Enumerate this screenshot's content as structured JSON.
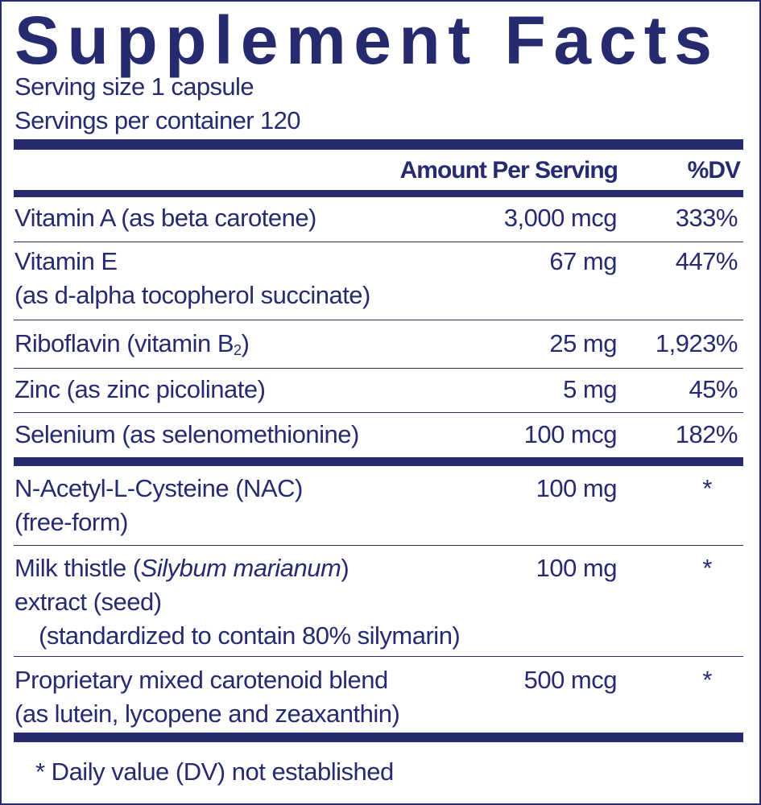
{
  "title": "Supplement Facts",
  "serving_size": "Serving size  1 capsule",
  "servings_per_container": "Servings per container  120",
  "header": {
    "amount": "Amount Per Serving",
    "dv": "%DV"
  },
  "rows": [
    {
      "name": "Vitamin A (as beta carotene)",
      "amount": "3,000 mcg",
      "dv": "333%"
    },
    {
      "name": "Vitamin E",
      "name_line2": "(as d-alpha tocopherol succinate)",
      "amount": "67 mg",
      "dv": "447%"
    },
    {
      "name": "Riboflavin (vitamin B",
      "name_sub": "2",
      "name_end": ")",
      "amount": "25 mg",
      "dv": "1,923%"
    },
    {
      "name": "Zinc (as zinc picolinate)",
      "amount": "5 mg",
      "dv": "45%"
    },
    {
      "name": "Selenium (as selenomethionine)",
      "amount": "100 mcg",
      "dv": "182%"
    },
    {
      "name": "N-Acetyl-L-Cysteine (NAC)",
      "name_line2": "(free-form)",
      "amount": "100 mg",
      "dv": "*"
    },
    {
      "name": "Milk thistle (",
      "name_italic": "Silybum marianum",
      "name_end": ")",
      "name_line2": "extract (seed)",
      "name_line3": "(standardized to contain 80% silymarin)",
      "amount": "100 mg",
      "dv": "*"
    },
    {
      "name": "Proprietary mixed carotenoid blend",
      "name_line2": "(as lutein, lycopene and zeaxanthin)",
      "amount": "500 mcg",
      "dv": "*"
    }
  ],
  "footnote": "* Daily value (DV) not established",
  "colors": {
    "ink": "#262b70",
    "background": "#ffffff"
  }
}
